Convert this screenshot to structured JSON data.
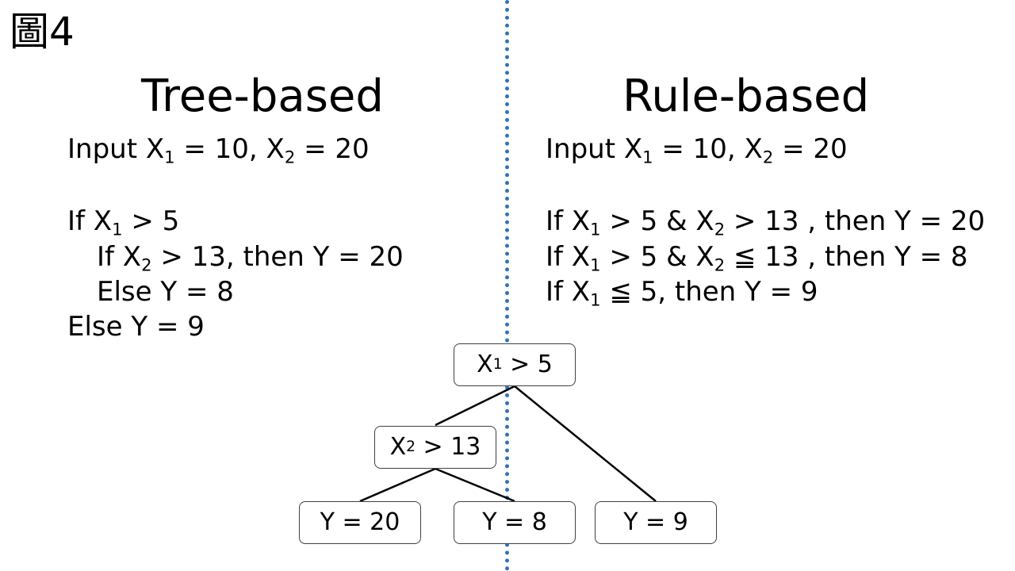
{
  "figure_label": "圖4",
  "colors": {
    "divider": "#2e75b6",
    "node_border": "#404040",
    "edge": "#000000"
  },
  "tree_based": {
    "heading": "Tree-based",
    "input": {
      "prefix": "Input X",
      "x1_sub": "1",
      "mid": " = 10, X",
      "x2_sub": "2",
      "suffix": " = 20"
    },
    "lines": [
      {
        "a": "If X",
        "s1": "1",
        "b": " > 5",
        "s2": "",
        "c": ""
      },
      {
        "a": "If X",
        "s1": "2",
        "b": " > 13, then Y = 20",
        "s2": "",
        "c": ""
      },
      {
        "a": "Else Y = 8",
        "s1": "",
        "b": "",
        "s2": "",
        "c": ""
      },
      {
        "a": "Else Y = 9",
        "s1": "",
        "b": "",
        "s2": "",
        "c": ""
      }
    ]
  },
  "rule_based": {
    "heading": "Rule-based",
    "input": {
      "prefix": "Input X",
      "x1_sub": "1",
      "mid": " = 10, X",
      "x2_sub": "2",
      "suffix": " = 20"
    },
    "rules": [
      {
        "a": "If X",
        "s1": "1",
        "b": " > 5 & X",
        "s2": "2",
        "c": " > 13 , then Y = 20"
      },
      {
        "a": "If X",
        "s1": "1",
        "b": " > 5 & X",
        "s2": "2",
        "c": " ≦ 13 , then Y = 8"
      },
      {
        "a": "If X",
        "s1": "1",
        "b": " ≦ 5, then Y = 9",
        "s2": "",
        "c": ""
      }
    ]
  },
  "decision_tree": {
    "root": {
      "var": "X",
      "sub": "1",
      "cond": " > 5"
    },
    "inner": {
      "var": "X",
      "sub": "2",
      "cond": " > 13"
    },
    "leaves": [
      {
        "label": "Y = 20"
      },
      {
        "label": "Y = 8"
      },
      {
        "label": "Y = 9"
      }
    ]
  }
}
